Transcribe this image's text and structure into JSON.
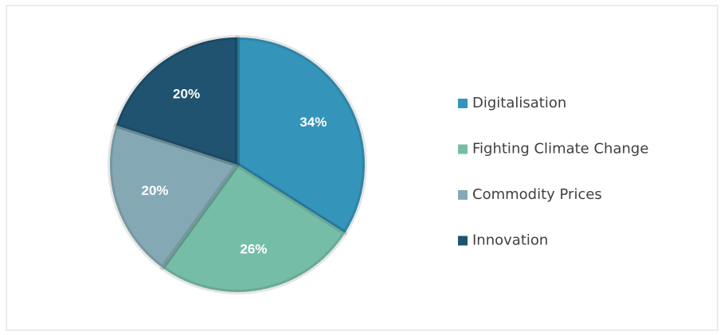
{
  "chart_data": {
    "type": "pie",
    "categories": [
      "Digitalisation",
      "Fighting Climate Change",
      "Commodity Prices",
      "Innovation"
    ],
    "values": [
      34,
      26,
      20,
      20
    ],
    "value_labels": [
      "34%",
      "26%",
      "20%",
      "20%"
    ],
    "colors": [
      "#3494ba",
      "#75bda7",
      "#84a9b4",
      "#1f5370"
    ],
    "legend": "right"
  }
}
